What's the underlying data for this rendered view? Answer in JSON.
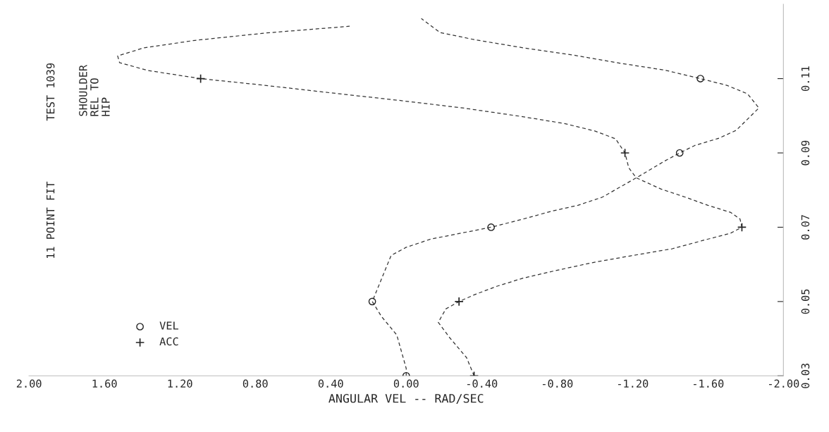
{
  "chart_data": {
    "type": "line",
    "orientation": "horizontal",
    "title": "11 POINT FIT",
    "annotations": [
      "TEST 1039",
      "SHOULDER\nREL TO\nHIP"
    ],
    "xlabel": "ANGULAR VEL -- RAD/SEC",
    "xlim": [
      2.0,
      -2.0
    ],
    "xticks": [
      {
        "value": 2.0,
        "label": "2.00"
      },
      {
        "value": 1.6,
        "label": "1.60"
      },
      {
        "value": 1.2,
        "label": "1.20"
      },
      {
        "value": 0.8,
        "label": "0.80"
      },
      {
        "value": 0.4,
        "label": "0.40"
      },
      {
        "value": 0.0,
        "label": "0.00"
      },
      {
        "value": -0.4,
        "label": "-0.40"
      },
      {
        "value": -0.8,
        "label": "-0.80"
      },
      {
        "value": -1.2,
        "label": "-1.20"
      },
      {
        "value": -1.6,
        "label": "-1.60"
      },
      {
        "value": -2.0,
        "label": "-2.00"
      }
    ],
    "ylim": [
      0.03,
      0.13
    ],
    "yticks": [
      0.03,
      0.05,
      0.07,
      0.09,
      0.11
    ],
    "grid": false,
    "legend": "bottom left",
    "series": [
      {
        "color": "#333333",
        "line_style": "dashed",
        "marker": "none",
        "x": [
          0.03,
          0.032,
          0.041,
          0.0459,
          0.05,
          0.0624,
          0.0646,
          0.0668,
          0.07,
          0.0722,
          0.0743,
          0.0759,
          0.0781,
          0.0833,
          0.0878,
          0.09,
          0.092,
          0.094,
          0.0961,
          0.1021,
          0.1059,
          0.1082,
          0.11,
          0.1123,
          0.1141,
          0.1163,
          0.1183,
          0.1205,
          0.1224,
          0.1262
        ],
        "values": [
          0.0,
          0.0,
          0.05,
          0.13,
          0.18,
          0.08,
          0.0,
          -0.13,
          -0.45,
          -0.62,
          -0.77,
          -0.91,
          -1.04,
          -1.22,
          -1.37,
          -1.45,
          -1.53,
          -1.66,
          -1.75,
          -1.87,
          -1.81,
          -1.7,
          -1.56,
          -1.37,
          -1.14,
          -0.89,
          -0.62,
          -0.36,
          -0.18,
          -0.08
        ]
      },
      {
        "color": "#333333",
        "line_style": "dashed",
        "marker": "none",
        "x": [
          0.03,
          0.0349,
          0.0403,
          0.0444,
          0.048,
          0.05,
          0.0518,
          0.0541,
          0.0563,
          0.0583,
          0.0605,
          0.0623,
          0.0642,
          0.0664,
          0.0684,
          0.07,
          0.0722,
          0.074,
          0.0759,
          0.0781,
          0.0803,
          0.0833,
          0.086,
          0.09,
          0.0938,
          0.0959,
          0.0979,
          0.0999,
          0.1021,
          0.1041,
          0.106,
          0.1082,
          0.11,
          0.1122,
          0.1143,
          0.1161,
          0.1183,
          0.1203,
          0.1223,
          0.1241
        ],
        "values": [
          -0.36,
          -0.32,
          -0.23,
          -0.17,
          -0.21,
          -0.28,
          -0.36,
          -0.48,
          -0.62,
          -0.79,
          -0.99,
          -1.19,
          -1.41,
          -1.57,
          -1.72,
          -1.78,
          -1.77,
          -1.72,
          -1.6,
          -1.48,
          -1.35,
          -1.22,
          -1.18,
          -1.16,
          -1.11,
          -1.0,
          -0.84,
          -0.6,
          -0.3,
          0.03,
          0.37,
          0.75,
          1.09,
          1.37,
          1.52,
          1.53,
          1.39,
          1.12,
          0.74,
          0.3
        ]
      },
      {
        "type": "scatter",
        "name": "VEL",
        "color": "#222222",
        "marker": "circle",
        "x": [
          0.03,
          0.05,
          0.07,
          0.09,
          0.11
        ],
        "values": [
          0.0,
          0.18,
          -0.45,
          -1.45,
          -1.56
        ]
      },
      {
        "type": "scatter",
        "name": "ACC",
        "color": "#222222",
        "marker": "cross",
        "x": [
          0.03,
          0.05,
          0.07,
          0.09,
          0.11
        ],
        "values": [
          -0.36,
          -0.28,
          -1.78,
          -1.16,
          1.09
        ]
      }
    ]
  }
}
